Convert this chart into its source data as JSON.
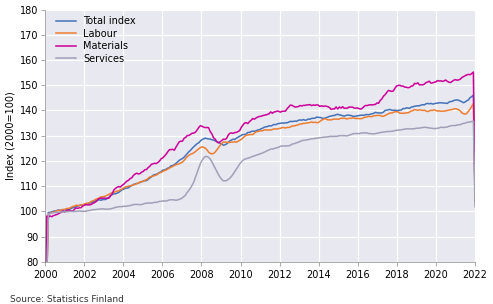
{
  "title": "",
  "ylabel": "Index (2000=100)",
  "source": "Source: Statistics Finland",
  "xlim": [
    2000,
    2022
  ],
  "ylim": [
    80,
    180
  ],
  "yticks": [
    80,
    90,
    100,
    110,
    120,
    130,
    140,
    150,
    160,
    170,
    180
  ],
  "xticks": [
    2000,
    2002,
    2004,
    2006,
    2008,
    2010,
    2012,
    2014,
    2016,
    2018,
    2020,
    2022
  ],
  "colors": {
    "total": "#4472b8",
    "labour": "#ed7d31",
    "materials": "#cc0099",
    "services": "#a0a0b8"
  },
  "legend_labels": [
    "Total index",
    "Labour",
    "Materials",
    "Services"
  ],
  "background_color": "#e8e8f0",
  "grid_color": "#ffffff",
  "figure_bg": "#ffffff"
}
